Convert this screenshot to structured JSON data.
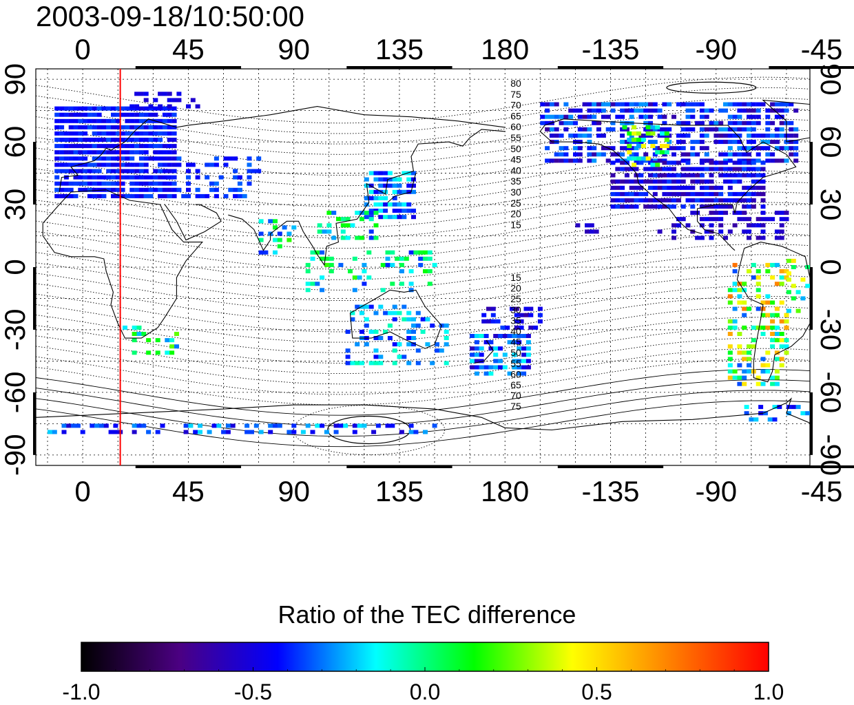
{
  "title": "2003-09-18/10:50:00",
  "map": {
    "type": "geographic-map",
    "top_axis_ticks": [
      "0",
      "45",
      "90",
      "135",
      "180",
      "-135",
      "-90",
      "-45"
    ],
    "bottom_axis_ticks": [
      "0",
      "45",
      "90",
      "135",
      "180",
      "-135",
      "-90",
      "-45"
    ],
    "left_axis_ticks": [
      "90",
      "60",
      "30",
      "0",
      "-30",
      "-60",
      "-90"
    ],
    "right_axis_ticks": [
      "90",
      "60",
      "30",
      "0",
      "-30",
      "-60",
      "-90"
    ],
    "lon_range": [
      -20,
      310
    ],
    "lat_range": [
      -95,
      95
    ],
    "terminator_lon": 16,
    "terminator_color": "#ff0000",
    "north_contour_labels": [
      "80",
      "75",
      "70",
      "65",
      "60",
      "55",
      "50",
      "45",
      "40",
      "35",
      "30",
      "25",
      "20",
      "15"
    ],
    "south_contour_labels": [
      "15",
      "20",
      "25",
      "30",
      "35",
      "40",
      "45",
      "50",
      "55",
      "60",
      "65",
      "70",
      "75"
    ],
    "contour_label_lon": 180,
    "colormap_stops": [
      "#000000",
      "#4b0082",
      "#0000ff",
      "#00ffff",
      "#00ff00",
      "#ffff00",
      "#ff8000",
      "#ff0000"
    ]
  },
  "colorbar": {
    "title": "Ratio of the TEC difference",
    "min": -1.0,
    "max": 1.0,
    "tick_labels": [
      "-1.0",
      "-0.5",
      "0.0",
      "0.5",
      "1.0"
    ]
  }
}
